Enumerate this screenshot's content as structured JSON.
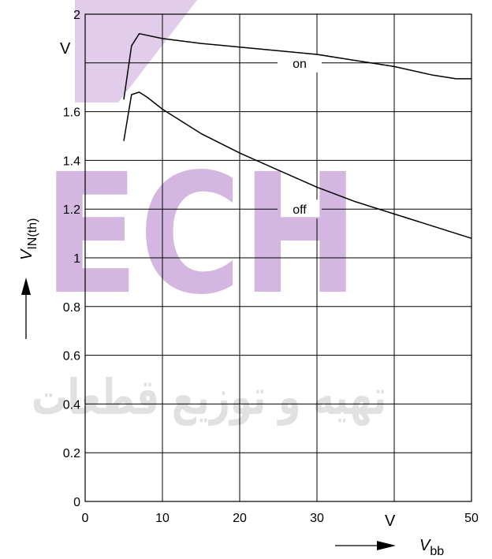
{
  "chart_data": {
    "type": "line",
    "xlabel": "V",
    "xlabel_subscript": "bb",
    "x_unit": "V",
    "ylabel": "V",
    "ylabel_subscript": "IN(th)",
    "y_unit": "V",
    "xlim": [
      0,
      50
    ],
    "ylim": [
      0,
      2
    ],
    "x_ticks": [
      0,
      10,
      20,
      30,
      40,
      50
    ],
    "y_ticks": [
      0,
      0.2,
      0.4,
      0.6,
      0.8,
      1,
      1.2,
      1.4,
      1.6,
      1.8,
      2
    ],
    "x_tick_labels": [
      "0",
      "10",
      "20",
      "30",
      "",
      "50"
    ],
    "y_tick_labels": [
      "0",
      "0.2",
      "0.4",
      "0.6",
      "0.8",
      "1",
      "1.2",
      "1.4",
      "1.6",
      "",
      "2"
    ],
    "grid": true,
    "series": [
      {
        "name": "on",
        "values": [
          [
            5,
            1.65
          ],
          [
            6,
            1.87
          ],
          [
            7,
            1.92
          ],
          [
            10,
            1.9
          ],
          [
            15,
            1.88
          ],
          [
            20,
            1.865
          ],
          [
            25,
            1.85
          ],
          [
            30,
            1.835
          ],
          [
            35,
            1.81
          ],
          [
            40,
            1.785
          ],
          [
            45,
            1.75
          ],
          [
            48,
            1.735
          ],
          [
            50,
            1.735
          ]
        ]
      },
      {
        "name": "off",
        "values": [
          [
            5,
            1.48
          ],
          [
            6,
            1.67
          ],
          [
            7,
            1.68
          ],
          [
            8,
            1.66
          ],
          [
            10,
            1.61
          ],
          [
            15,
            1.51
          ],
          [
            20,
            1.43
          ],
          [
            25,
            1.36
          ],
          [
            30,
            1.29
          ],
          [
            35,
            1.23
          ],
          [
            40,
            1.18
          ],
          [
            45,
            1.13
          ],
          [
            50,
            1.08
          ]
        ]
      }
    ]
  },
  "watermark": {
    "text": "ECH",
    "arabic": "تهیه و توزیع قطعات",
    "color": "#b07cc6"
  }
}
